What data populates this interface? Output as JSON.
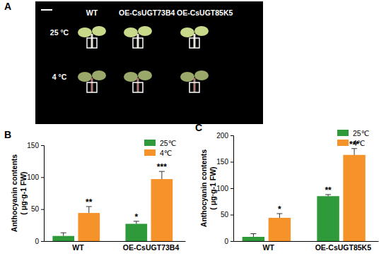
{
  "photo": {
    "label": "A",
    "columns": [
      "WT",
      "OE-CsUGT73B4",
      "OE-CsUGT85K5"
    ],
    "rows": [
      "25 °C",
      "4 °C"
    ]
  },
  "chart_data": [
    {
      "type": "bar",
      "title": "B",
      "y_label": [
        "Anthocyanin contents",
        "( μg·g-1 FW)"
      ],
      "categories": [
        "WT",
        "OE-CsUGT73B4"
      ],
      "series": [
        {
          "name": "25℃",
          "color": "#2f9a3a",
          "values": [
            8,
            27
          ],
          "errors": [
            5,
            4
          ],
          "significance": [
            null,
            "*"
          ]
        },
        {
          "name": "4℃",
          "color": "#f5922a",
          "values": [
            44,
            97
          ],
          "errors": [
            10,
            12
          ],
          "significance": [
            "**",
            "***"
          ]
        }
      ],
      "ylim": [
        0,
        150
      ],
      "yticks": [
        0,
        50,
        100,
        150
      ],
      "legend": "top-right"
    },
    {
      "type": "bar",
      "title": "C",
      "y_label": [
        "Anthocyanin contents",
        "( μg·g-1 FW)"
      ],
      "categories": [
        "WT",
        "OE-CsUGT85K5"
      ],
      "series": [
        {
          "name": "25℃",
          "color": "#2f9a3a",
          "values": [
            8,
            85
          ],
          "errors": [
            6,
            3
          ],
          "significance": [
            null,
            "**"
          ]
        },
        {
          "name": "4℃",
          "color": "#f5922a",
          "values": [
            44,
            163
          ],
          "errors": [
            8,
            12
          ],
          "significance": [
            "*",
            "***"
          ]
        }
      ],
      "ylim": [
        0,
        200
      ],
      "yticks": [
        0,
        50,
        100,
        150,
        200
      ],
      "legend": "top-right"
    }
  ]
}
